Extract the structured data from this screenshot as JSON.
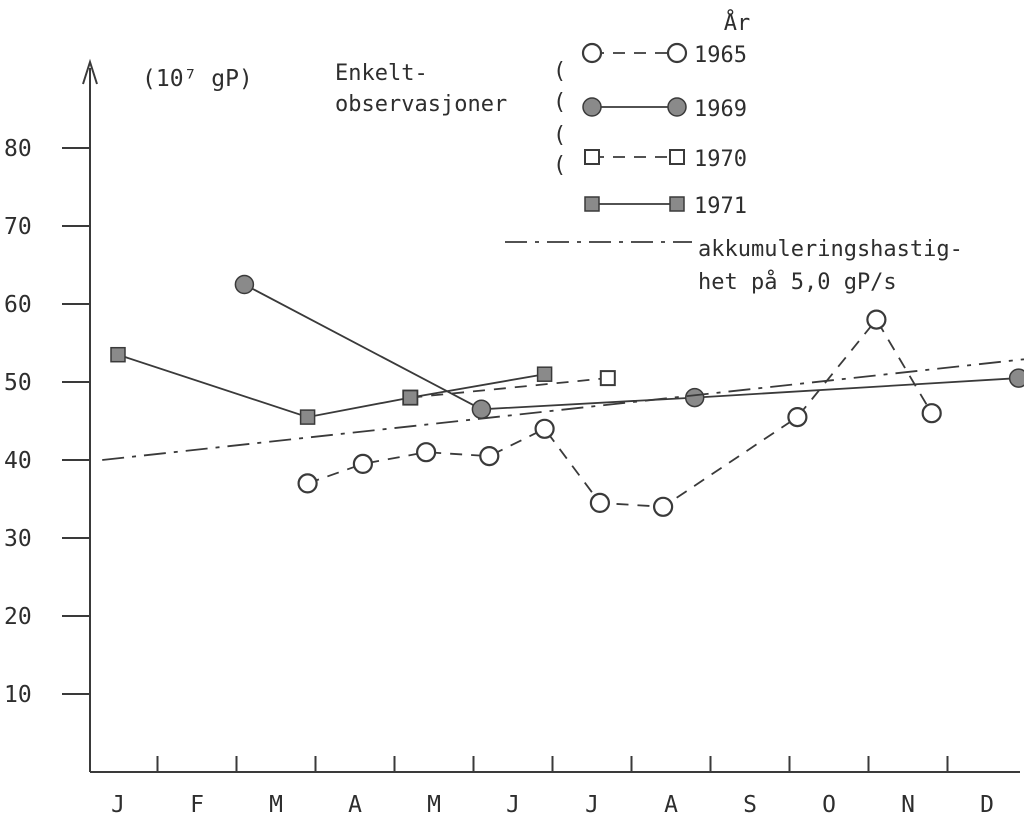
{
  "chart_data": {
    "type": "line",
    "title": "",
    "unit_label": "(10⁷ gP)",
    "ylabel": "",
    "xlabel": "",
    "ylim": [
      0,
      90
    ],
    "y_ticks": [
      10,
      20,
      30,
      40,
      50,
      60,
      70,
      80
    ],
    "categories": [
      "J",
      "F",
      "M",
      "A",
      "M",
      "J",
      "J",
      "A",
      "S",
      "O",
      "N",
      "D"
    ],
    "grid": false,
    "legend": {
      "placement": "top-right",
      "group_label": "År",
      "bracket_label_line1": "Enkelt-",
      "bracket_label_line2": "observasjoner"
    },
    "series": [
      {
        "name": "1965",
        "marker": "open-circle",
        "line_style": "dashed",
        "points": [
          {
            "x": 2.4,
            "y": 37
          },
          {
            "x": 3.1,
            "y": 39.5
          },
          {
            "x": 3.9,
            "y": 41
          },
          {
            "x": 4.7,
            "y": 40.5
          },
          {
            "x": 5.4,
            "y": 44
          },
          {
            "x": 6.1,
            "y": 34.5
          },
          {
            "x": 6.9,
            "y": 34
          },
          {
            "x": 8.6,
            "y": 45.5
          },
          {
            "x": 9.6,
            "y": 58
          },
          {
            "x": 10.3,
            "y": 46
          }
        ]
      },
      {
        "name": "1969",
        "marker": "filled-circle",
        "line_style": "solid",
        "points": [
          {
            "x": 1.6,
            "y": 62.5
          },
          {
            "x": 4.6,
            "y": 46.5
          },
          {
            "x": 7.3,
            "y": 48
          },
          {
            "x": 11.4,
            "y": 50.5
          }
        ]
      },
      {
        "name": "1970",
        "marker": "open-square",
        "line_style": "dashed",
        "points": [
          {
            "x": 3.7,
            "y": 48
          },
          {
            "x": 6.2,
            "y": 50.5
          }
        ]
      },
      {
        "name": "1971",
        "marker": "filled-square",
        "line_style": "solid",
        "points": [
          {
            "x": 0.0,
            "y": 53.5
          },
          {
            "x": 2.4,
            "y": 45.5
          },
          {
            "x": 3.7,
            "y": 48
          },
          {
            "x": 5.4,
            "y": 51
          }
        ]
      },
      {
        "name": "akkumuleringshastighet på 5,0 gP/s",
        "label_line1": "akkumuleringshastig-",
        "label_line2": "het på 5,0 gP/s",
        "marker": "none",
        "line_style": "dash-dot",
        "points": [
          {
            "x": -0.2,
            "y": 40
          },
          {
            "x": 12.0,
            "y": 53.5
          }
        ]
      }
    ]
  },
  "colors": {
    "ink": "#3a3a3a",
    "text": "#2e2e2e",
    "marker_fill": "#8a8a8a",
    "background": "#ffffff"
  }
}
